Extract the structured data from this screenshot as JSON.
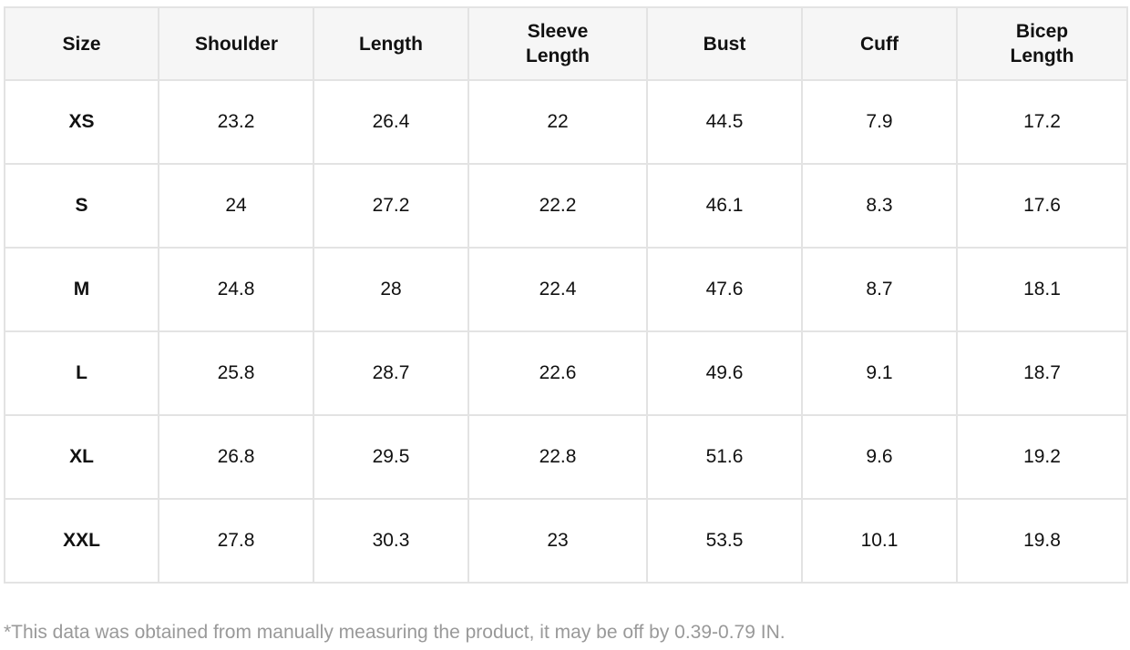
{
  "table": {
    "header": [
      "Size",
      "Shoulder",
      "Length",
      "Sleeve Length",
      "Bust",
      "Cuff",
      "Bicep Length"
    ],
    "rows": [
      [
        "XS",
        "23.2",
        "26.4",
        "22",
        "44.5",
        "7.9",
        "17.2"
      ],
      [
        "S",
        "24",
        "27.2",
        "22.2",
        "46.1",
        "8.3",
        "17.6"
      ],
      [
        "M",
        "24.8",
        "28",
        "22.4",
        "47.6",
        "8.7",
        "18.1"
      ],
      [
        "L",
        "25.8",
        "28.7",
        "22.6",
        "49.6",
        "9.1",
        "18.7"
      ],
      [
        "XL",
        "26.8",
        "29.5",
        "22.8",
        "51.6",
        "9.6",
        "19.2"
      ],
      [
        "XXL",
        "27.8",
        "30.3",
        "23",
        "53.5",
        "10.1",
        "19.8"
      ]
    ]
  },
  "footnote": "*This data was obtained from manually measuring the product, it may be off by 0.39-0.79 IN."
}
